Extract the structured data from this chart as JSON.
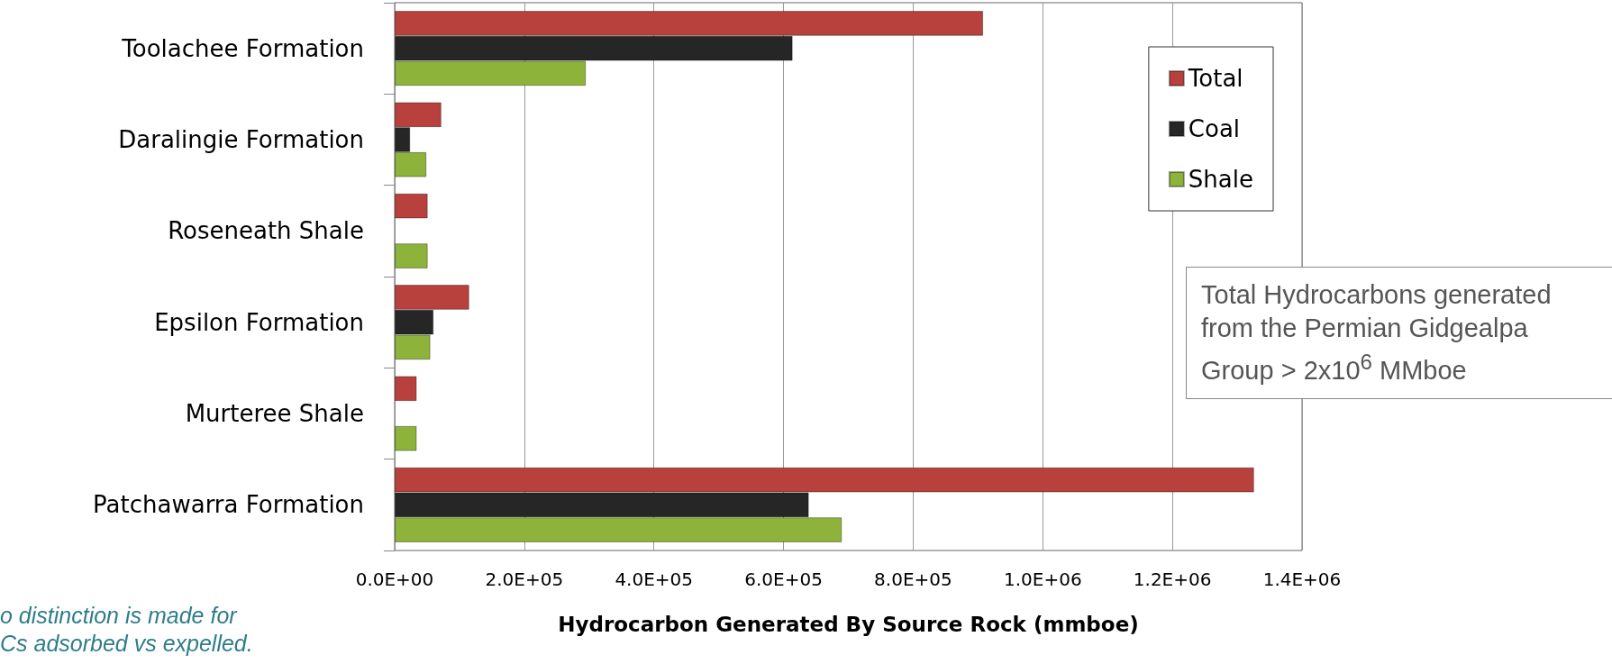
{
  "chart_data": {
    "type": "bar",
    "orientation": "horizontal",
    "xlabel": "Hydrocarbon Generated By Source Rock (mmboe)",
    "categories": [
      "Toolachee Formation",
      "Daralingie Formation",
      "Roseneath Shale",
      "Epsilon Formation",
      "Murteree Shale",
      "Patchawarra Formation"
    ],
    "series": [
      {
        "name": "Total",
        "color": "#b8403d",
        "values": [
          908000,
          72000,
          51000,
          115000,
          34000,
          1326000
        ]
      },
      {
        "name": "Coal",
        "color": "#262626",
        "values": [
          614000,
          24000,
          null,
          60000,
          null,
          639000
        ]
      },
      {
        "name": "Shale",
        "color": "#8db33a",
        "values": [
          295000,
          49000,
          51000,
          55000,
          34000,
          690000
        ]
      }
    ],
    "xlim": [
      0,
      1400000
    ],
    "xticks": [
      {
        "value": 0,
        "label": "0.0E+00"
      },
      {
        "value": 200000,
        "label": "2.0E+05"
      },
      {
        "value": 400000,
        "label": "4.0E+05"
      },
      {
        "value": 600000,
        "label": "6.0E+05"
      },
      {
        "value": 800000,
        "label": "8.0E+05"
      },
      {
        "value": 1000000,
        "label": "1.0E+06"
      },
      {
        "value": 1200000,
        "label": "1.2E+06"
      },
      {
        "value": 1400000,
        "label": "1.4E+06"
      }
    ],
    "grid": "x",
    "legend": "top right",
    "annotations": [
      "Total Hydrocarbons generated from the Permian Gidgealpa Group > 2x10$^{6}$ MMboe",
      "o distinction is made for\nCs adsorbed vs expelled."
    ]
  }
}
